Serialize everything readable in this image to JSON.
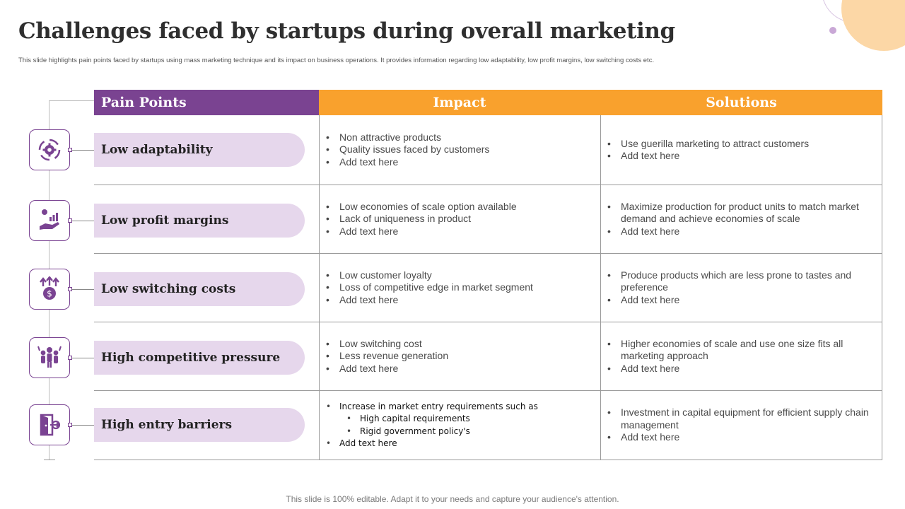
{
  "title": "Challenges faced by startups during overall marketing",
  "subtitle": "This slide highlights pain points faced by startups using mass marketing technique and its impact on  business operations. It provides information regarding low adaptability, low profit margins, low switching costs etc.",
  "headers": {
    "pain_points": "Pain Points",
    "impact": "Impact",
    "solutions": "Solutions"
  },
  "colors": {
    "purple": "#7a4391",
    "orange": "#f9a12d",
    "pill": "#e6d7ec"
  },
  "rows": [
    {
      "icon": "gear-cycle-icon",
      "pain": "Low adaptability",
      "impact": [
        "Non attractive products",
        "Quality issues faced by customers",
        "Add text here"
      ],
      "solutions": [
        "Use guerilla marketing to attract customers",
        "Add text here"
      ]
    },
    {
      "icon": "hand-money-growth-icon",
      "pain": "Low profit margins",
      "impact": [
        "Low economies of scale option available",
        "Lack of uniqueness in product",
        "Add text here"
      ],
      "solutions": [
        "Maximize production for product units to match market demand and achieve economies of scale",
        "Add text here"
      ]
    },
    {
      "icon": "dollar-arrows-icon",
      "pain": "Low switching costs",
      "impact": [
        "Low customer loyalty",
        "Loss of competitive edge in market segment",
        "Add text here"
      ],
      "solutions": [
        "Produce products which are less prone to tastes and preference",
        "Add text here"
      ]
    },
    {
      "icon": "crowd-people-icon",
      "pain": "High competitive pressure",
      "impact": [
        "Low switching cost",
        "Less  revenue generation",
        "Add text here"
      ],
      "solutions": [
        "Higher economies of scale and use one size fits all marketing approach",
        "Add text here"
      ]
    },
    {
      "icon": "door-exit-icon",
      "pain": "High entry barriers",
      "impact": [
        "Increase in market entry requirements such as",
        "High capital requirements",
        "Rigid government policy's",
        "Add text here"
      ],
      "solutions": [
        "Investment in capital equipment for efficient supply chain management",
        "Add text here"
      ]
    }
  ],
  "footer": "This slide is 100% editable. Adapt it to your needs and capture your audience's attention."
}
